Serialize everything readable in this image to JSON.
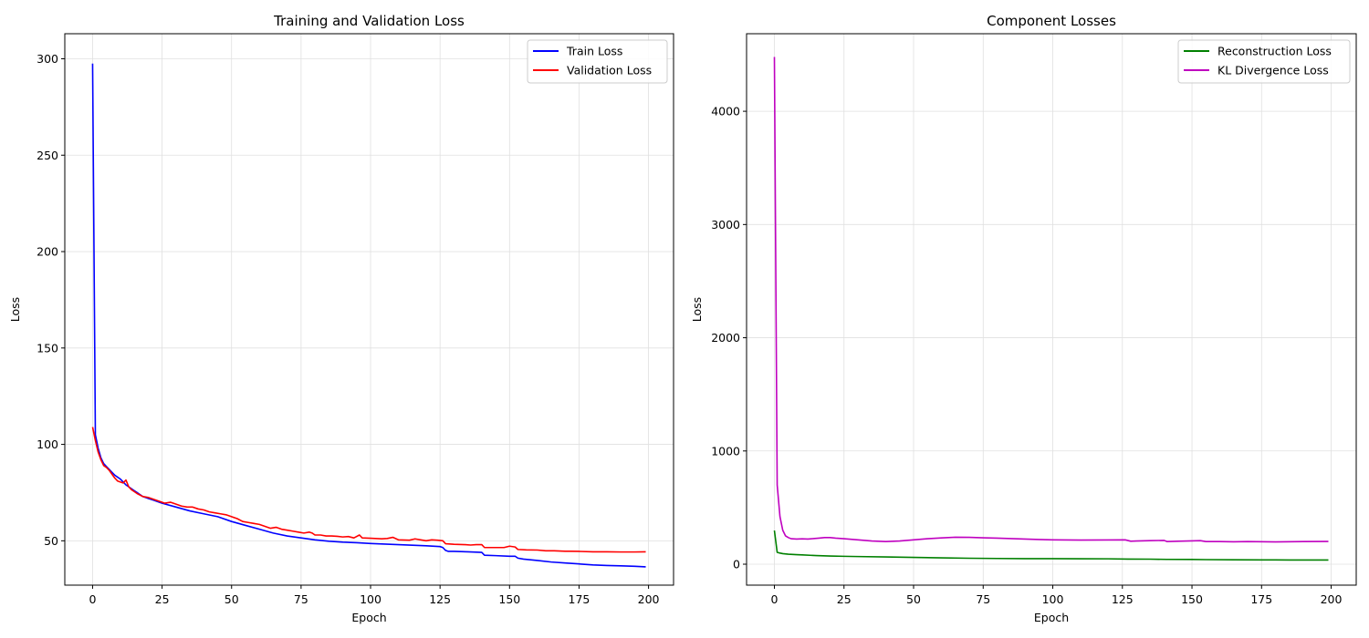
{
  "chart_data": [
    {
      "type": "line",
      "title": "Training and Validation Loss",
      "xlabel": "Epoch",
      "ylabel": "Loss",
      "xlim": [
        -10,
        209
      ],
      "ylim": [
        27,
        313
      ],
      "xticks": [
        0,
        25,
        50,
        75,
        100,
        125,
        150,
        175,
        200
      ],
      "yticks": [
        50,
        100,
        150,
        200,
        250,
        300
      ],
      "grid": true,
      "legend": "upper right",
      "series": [
        {
          "name": "Train Loss",
          "color": "#0000ff",
          "points": [
            [
              0,
              297.5
            ],
            [
              1,
              105
            ],
            [
              2,
              98
            ],
            [
              3,
              93
            ],
            [
              4,
              90
            ],
            [
              5,
              88.5
            ],
            [
              6,
              87
            ],
            [
              7,
              85.5
            ],
            [
              8,
              84
            ],
            [
              9,
              83
            ],
            [
              10,
              82
            ],
            [
              11,
              80.5
            ],
            [
              12,
              79
            ],
            [
              13,
              78
            ],
            [
              14,
              77
            ],
            [
              15,
              76
            ],
            [
              16,
              75
            ],
            [
              17,
              74
            ],
            [
              18,
              73
            ],
            [
              19,
              72.5
            ],
            [
              20,
              72
            ],
            [
              22,
              71
            ],
            [
              25,
              69.5
            ],
            [
              30,
              67.5
            ],
            [
              35,
              65.5
            ],
            [
              40,
              64
            ],
            [
              45,
              62.5
            ],
            [
              50,
              60
            ],
            [
              55,
              58
            ],
            [
              60,
              56
            ],
            [
              65,
              54
            ],
            [
              70,
              52.5
            ],
            [
              75,
              51.5
            ],
            [
              80,
              50.5
            ],
            [
              85,
              49.8
            ],
            [
              90,
              49.3
            ],
            [
              95,
              49
            ],
            [
              100,
              48.6
            ],
            [
              105,
              48.3
            ],
            [
              110,
              48
            ],
            [
              115,
              47.7
            ],
            [
              120,
              47.4
            ],
            [
              125,
              47
            ],
            [
              126,
              46.5
            ],
            [
              127,
              45
            ],
            [
              128,
              44.5
            ],
            [
              130,
              44.5
            ],
            [
              135,
              44.3
            ],
            [
              140,
              44
            ],
            [
              141,
              42.5
            ],
            [
              145,
              42.3
            ],
            [
              150,
              42
            ],
            [
              152,
              42
            ],
            [
              153,
              41
            ],
            [
              155,
              40.5
            ],
            [
              160,
              39.8
            ],
            [
              165,
              39
            ],
            [
              170,
              38.5
            ],
            [
              175,
              38
            ],
            [
              180,
              37.5
            ],
            [
              185,
              37.2
            ],
            [
              190,
              37
            ],
            [
              195,
              36.8
            ],
            [
              199,
              36.5
            ]
          ]
        },
        {
          "name": "Validation Loss",
          "color": "#ff0000",
          "points": [
            [
              0,
              109
            ],
            [
              1,
              102
            ],
            [
              2,
              96
            ],
            [
              3,
              92
            ],
            [
              4,
              89
            ],
            [
              5,
              88
            ],
            [
              6,
              86.5
            ],
            [
              7,
              84.5
            ],
            [
              8,
              82.5
            ],
            [
              9,
              81
            ],
            [
              10,
              80.5
            ],
            [
              11,
              80
            ],
            [
              12,
              81.5
            ],
            [
              13,
              78
            ],
            [
              14,
              76.5
            ],
            [
              15,
              75.5
            ],
            [
              16,
              74.5
            ],
            [
              18,
              73
            ],
            [
              20,
              72.5
            ],
            [
              22,
              71.5
            ],
            [
              24,
              70.5
            ],
            [
              26,
              69.5
            ],
            [
              28,
              70
            ],
            [
              30,
              69
            ],
            [
              32,
              68
            ],
            [
              34,
              67.5
            ],
            [
              36,
              67.5
            ],
            [
              38,
              66.5
            ],
            [
              40,
              66
            ],
            [
              42,
              65
            ],
            [
              44,
              64.5
            ],
            [
              46,
              64
            ],
            [
              48,
              63.5
            ],
            [
              50,
              62.5
            ],
            [
              52,
              61.5
            ],
            [
              54,
              60
            ],
            [
              56,
              59.5
            ],
            [
              58,
              59
            ],
            [
              60,
              58.5
            ],
            [
              62,
              57.5
            ],
            [
              64,
              56.5
            ],
            [
              66,
              57
            ],
            [
              68,
              56
            ],
            [
              70,
              55.5
            ],
            [
              72,
              55
            ],
            [
              74,
              54.5
            ],
            [
              76,
              54
            ],
            [
              78,
              54.5
            ],
            [
              79,
              54
            ],
            [
              80,
              53
            ],
            [
              82,
              53
            ],
            [
              84,
              52.5
            ],
            [
              86,
              52.5
            ],
            [
              88,
              52.3
            ],
            [
              90,
              52
            ],
            [
              92,
              52.2
            ],
            [
              94,
              51.5
            ],
            [
              96,
              53
            ],
            [
              97,
              51.5
            ],
            [
              100,
              51.3
            ],
            [
              104,
              51
            ],
            [
              106,
              51.2
            ],
            [
              108,
              51.8
            ],
            [
              110,
              50.5
            ],
            [
              114,
              50.3
            ],
            [
              116,
              51
            ],
            [
              118,
              50.5
            ],
            [
              120,
              50
            ],
            [
              122,
              50.5
            ],
            [
              124,
              50.3
            ],
            [
              126,
              50
            ],
            [
              127,
              48.5
            ],
            [
              130,
              48.2
            ],
            [
              134,
              48
            ],
            [
              136,
              47.8
            ],
            [
              138,
              48
            ],
            [
              140,
              48
            ],
            [
              141,
              46.5
            ],
            [
              145,
              46.5
            ],
            [
              148,
              46.5
            ],
            [
              150,
              47.2
            ],
            [
              152,
              46.8
            ],
            [
              153,
              45.5
            ],
            [
              156,
              45.3
            ],
            [
              160,
              45.2
            ],
            [
              163,
              44.8
            ],
            [
              166,
              44.8
            ],
            [
              170,
              44.6
            ],
            [
              172,
              44.6
            ],
            [
              175,
              44.5
            ],
            [
              180,
              44.3
            ],
            [
              185,
              44.3
            ],
            [
              190,
              44.2
            ],
            [
              195,
              44.2
            ],
            [
              199,
              44.3
            ]
          ]
        }
      ]
    },
    {
      "type": "line",
      "title": "Component Losses",
      "xlabel": "Epoch",
      "ylabel": "Loss",
      "xlim": [
        -10,
        209
      ],
      "ylim": [
        -185,
        4685
      ],
      "xticks": [
        0,
        25,
        50,
        75,
        100,
        125,
        150,
        175,
        200
      ],
      "yticks": [
        0,
        1000,
        2000,
        3000,
        4000
      ],
      "grid": true,
      "legend": "upper right",
      "series": [
        {
          "name": "Reconstruction Loss",
          "color": "#008000",
          "points": [
            [
              0,
              297.5
            ],
            [
              1,
              105
            ],
            [
              2,
              98
            ],
            [
              3,
              93
            ],
            [
              5,
              88
            ],
            [
              8,
              84
            ],
            [
              10,
              82
            ],
            [
              15,
              76
            ],
            [
              20,
              72
            ],
            [
              25,
              69.5
            ],
            [
              30,
              67.5
            ],
            [
              40,
              64
            ],
            [
              50,
              60
            ],
            [
              60,
              56
            ],
            [
              70,
              52.5
            ],
            [
              80,
              50.5
            ],
            [
              90,
              49.3
            ],
            [
              100,
              48.6
            ],
            [
              110,
              48
            ],
            [
              120,
              47.4
            ],
            [
              127,
              45
            ],
            [
              135,
              44.3
            ],
            [
              141,
              42.5
            ],
            [
              150,
              42
            ],
            [
              155,
              40.5
            ],
            [
              165,
              39
            ],
            [
              175,
              38
            ],
            [
              185,
              37.2
            ],
            [
              199,
              36.5
            ]
          ]
        },
        {
          "name": "KL Divergence Loss",
          "color": "#bf00bf",
          "points": [
            [
              0,
              4480
            ],
            [
              1,
              700
            ],
            [
              2,
              420
            ],
            [
              3,
              300
            ],
            [
              4,
              250
            ],
            [
              5,
              235
            ],
            [
              6,
              225
            ],
            [
              8,
              222
            ],
            [
              10,
              224
            ],
            [
              12,
              222
            ],
            [
              14,
              226
            ],
            [
              16,
              230
            ],
            [
              18,
              235
            ],
            [
              20,
              235
            ],
            [
              22,
              230
            ],
            [
              25,
              225
            ],
            [
              30,
              215
            ],
            [
              35,
              205
            ],
            [
              40,
              200
            ],
            [
              45,
              205
            ],
            [
              50,
              215
            ],
            [
              55,
              225
            ],
            [
              60,
              232
            ],
            [
              65,
              238
            ],
            [
              70,
              237
            ],
            [
              75,
              233
            ],
            [
              80,
              230
            ],
            [
              85,
              226
            ],
            [
              90,
              222
            ],
            [
              95,
              218
            ],
            [
              100,
              215
            ],
            [
              110,
              213
            ],
            [
              120,
              214
            ],
            [
              126,
              215
            ],
            [
              128,
              203
            ],
            [
              130,
              205
            ],
            [
              135,
              208
            ],
            [
              140,
              210
            ],
            [
              141,
              200
            ],
            [
              145,
              203
            ],
            [
              150,
              206
            ],
            [
              153,
              208
            ],
            [
              155,
              200
            ],
            [
              160,
              200
            ],
            [
              165,
              198
            ],
            [
              170,
              200
            ],
            [
              180,
              197
            ],
            [
              190,
              200
            ],
            [
              199,
              201
            ]
          ]
        }
      ]
    }
  ]
}
